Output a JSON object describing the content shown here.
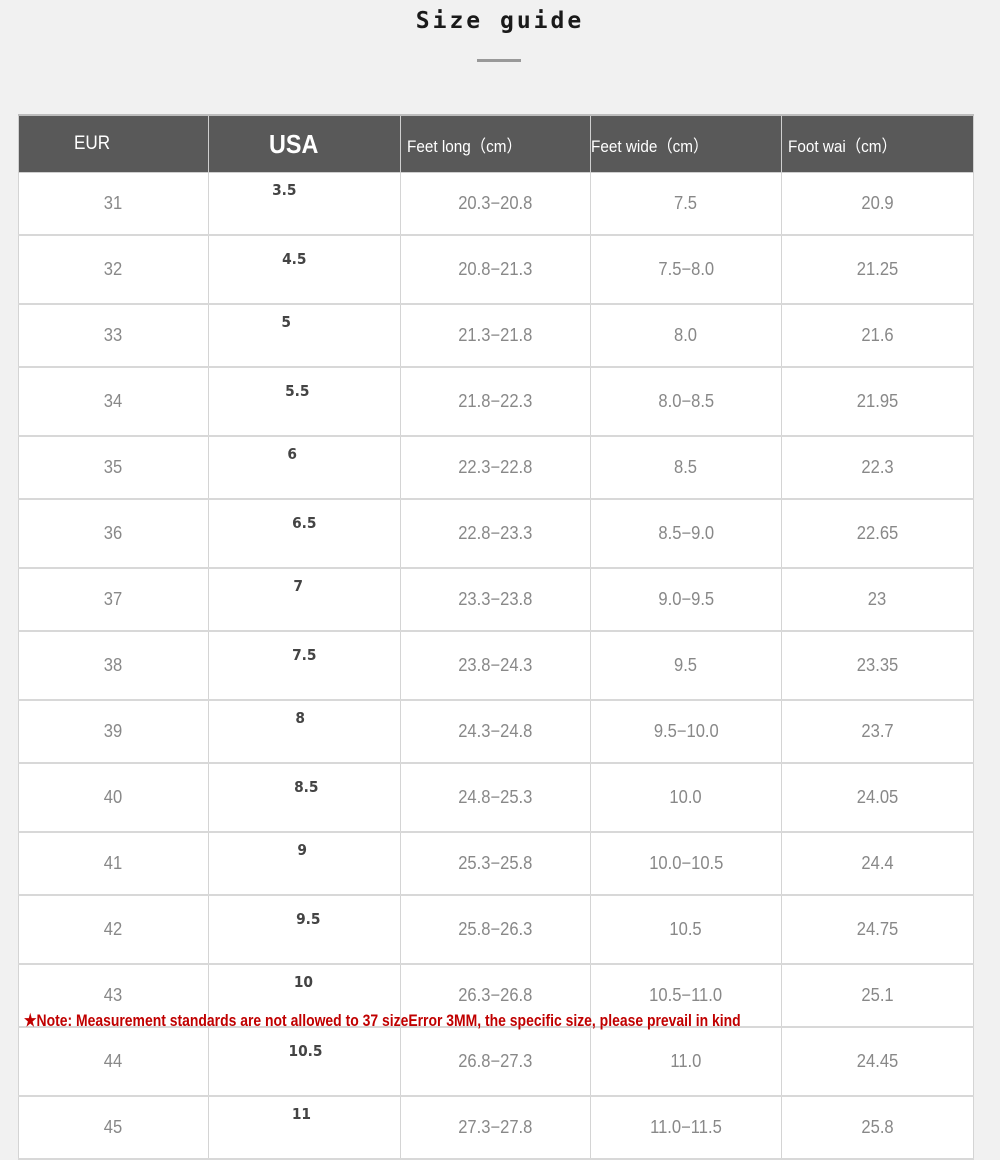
{
  "title": "Size guide",
  "note": "★Note: Measurement standards are not allowed to 37 sizeError 3MM, the specific size, please prevail in kind",
  "colors": {
    "header_bg": "#595959",
    "note": "#c00000"
  },
  "table": {
    "headers": [
      "EUR",
      "USA",
      "Feet long（cm）",
      "Feet wide（cm）",
      "Foot wai（cm）"
    ],
    "rows": [
      [
        "31",
        "3.5",
        "20.3−20.8",
        "7.5",
        "20.9"
      ],
      [
        "32",
        "4.5",
        "20.8−21.3",
        "7.5−8.0",
        "21.25"
      ],
      [
        "33",
        "5",
        "21.3−21.8",
        "8.0",
        "21.6"
      ],
      [
        "34",
        "5.5",
        "21.8−22.3",
        "8.0−8.5",
        "21.95"
      ],
      [
        "35",
        "6",
        "22.3−22.8",
        "8.5",
        "22.3"
      ],
      [
        "36",
        "6.5",
        "22.8−23.3",
        "8.5−9.0",
        "22.65"
      ],
      [
        "37",
        "7",
        "23.3−23.8",
        "9.0−9.5",
        "23"
      ],
      [
        "38",
        "7.5",
        "23.8−24.3",
        "9.5",
        "23.35"
      ],
      [
        "39",
        "8",
        "24.3−24.8",
        "9.5−10.0",
        "23.7"
      ],
      [
        "40",
        "8.5",
        "24.8−25.3",
        "10.0",
        "24.05"
      ],
      [
        "41",
        "9",
        "25.3−25.8",
        "10.0−10.5",
        "24.4"
      ],
      [
        "42",
        "9.5",
        "25.8−26.3",
        "10.5",
        "24.75"
      ],
      [
        "43",
        "10",
        "26.3−26.8",
        "10.5−11.0",
        "25.1"
      ],
      [
        "44",
        "10.5",
        "26.8−27.3",
        "11.0",
        "24.45"
      ],
      [
        "45",
        "11",
        "27.3−27.8",
        "11.0−11.5",
        "25.8"
      ]
    ]
  }
}
